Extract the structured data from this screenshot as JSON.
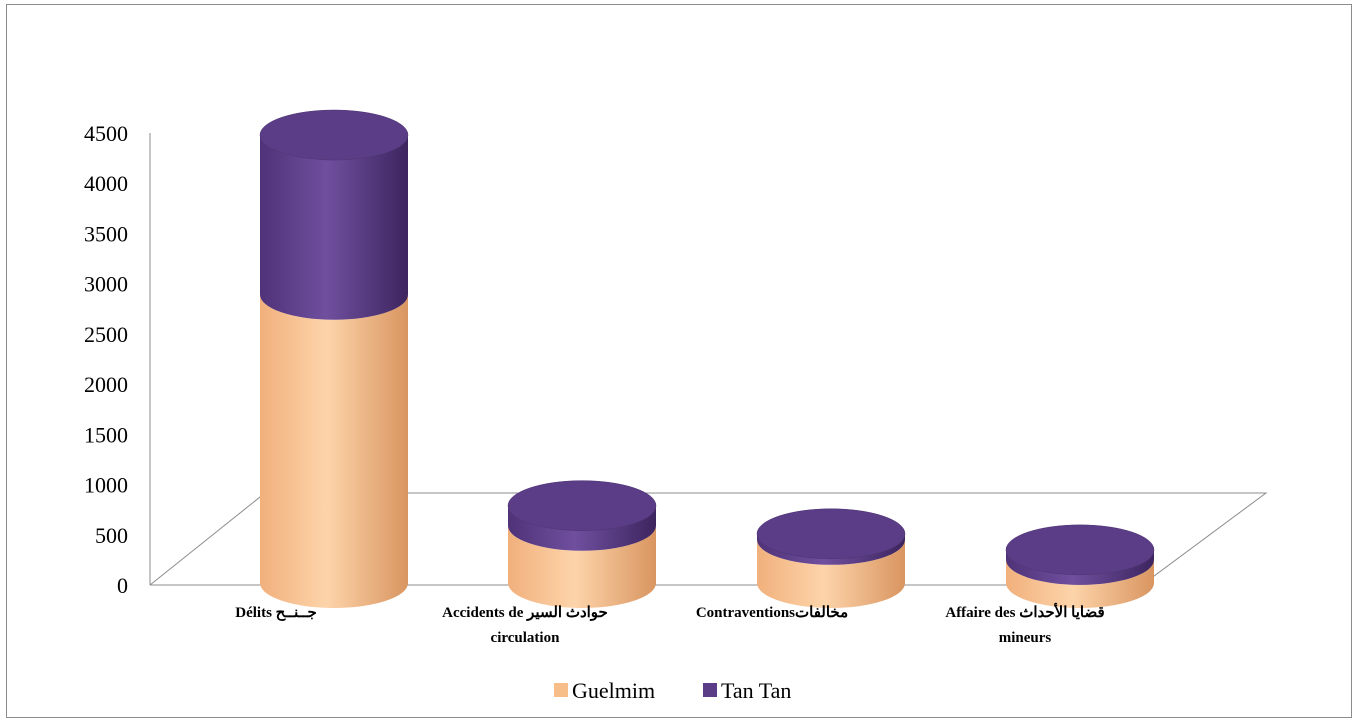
{
  "chart_data": {
    "type": "bar",
    "stacked": true,
    "style": "3d-cylinder",
    "categories": [
      [
        "Délits جــنــح"
      ],
      [
        "Accidents de حوادث السير",
        "circulation"
      ],
      [
        "Contraventionsمخالفات"
      ],
      [
        "Affaire des  قضايا الأحداث",
        "mineurs"
      ]
    ],
    "series": [
      {
        "name": "Guelmim",
        "values": [
          2870,
          570,
          430,
          230
        ],
        "color": "#f8be8a"
      },
      {
        "name": "Tan Tan",
        "values": [
          1590,
          200,
          60,
          100
        ],
        "color": "#5a3d86"
      }
    ],
    "yticks": [
      "0",
      "500",
      "1000",
      "1500",
      "2000",
      "2500",
      "3000",
      "3500",
      "4000",
      "4500"
    ],
    "ylim": [
      0,
      4500
    ],
    "legend_position": "bottom",
    "grid": false
  }
}
